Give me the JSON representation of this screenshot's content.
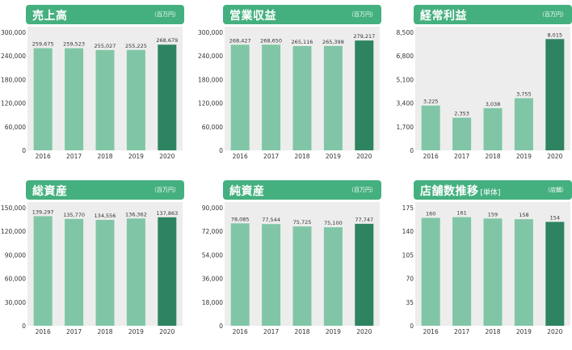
{
  "chart_data": [
    {
      "type": "bar",
      "title": "売上高",
      "title_suffix": "",
      "unit": "（百万円）",
      "categories": [
        "2016",
        "2017",
        "2018",
        "2019",
        "2020"
      ],
      "values": [
        259675,
        259523,
        255027,
        255225,
        268679
      ],
      "value_labels": [
        "259,675",
        "259,523",
        "255,027",
        "255,225",
        "268,679"
      ],
      "yticks": [
        0,
        60000,
        120000,
        180000,
        240000,
        300000
      ],
      "ytick_labels": [
        "0",
        "60,000",
        "120,000",
        "180,000",
        "240,000",
        "300,000"
      ],
      "ylim": [
        0,
        300000
      ],
      "grid": false
    },
    {
      "type": "bar",
      "title": "営業収益",
      "title_suffix": "",
      "unit": "（百万円）",
      "categories": [
        "2016",
        "2017",
        "2018",
        "2019",
        "2020"
      ],
      "values": [
        268427,
        268650,
        265116,
        265398,
        279217
      ],
      "value_labels": [
        "268,427",
        "268,650",
        "265,116",
        "265,398",
        "279,217"
      ],
      "yticks": [
        0,
        60000,
        120000,
        180000,
        240000,
        300000
      ],
      "ytick_labels": [
        "0",
        "60,000",
        "120,000",
        "180,000",
        "240,000",
        "300,000"
      ],
      "ylim": [
        0,
        300000
      ],
      "grid": false
    },
    {
      "type": "bar",
      "title": "経常利益",
      "title_suffix": "",
      "unit": "（百万円）",
      "categories": [
        "2016",
        "2017",
        "2018",
        "2019",
        "2020"
      ],
      "values": [
        3225,
        2353,
        3038,
        3755,
        8015
      ],
      "value_labels": [
        "3,225",
        "2,353",
        "3,038",
        "3,755",
        "8,015"
      ],
      "yticks": [
        0,
        1700,
        3400,
        5100,
        6800,
        8500
      ],
      "ytick_labels": [
        "0",
        "1,700",
        "3,400",
        "5,100",
        "6,800",
        "8,500"
      ],
      "ylim": [
        0,
        8500
      ],
      "grid": false
    },
    {
      "type": "bar",
      "title": "総資産",
      "title_suffix": "",
      "unit": "（百万円）",
      "categories": [
        "2016",
        "2017",
        "2018",
        "2019",
        "2020"
      ],
      "values": [
        139297,
        135770,
        134556,
        136362,
        137863
      ],
      "value_labels": [
        "139,297",
        "135,770",
        "134,556",
        "136,362",
        "137,863"
      ],
      "yticks": [
        0,
        30000,
        60000,
        90000,
        120000,
        150000
      ],
      "ytick_labels": [
        "0",
        "30,000",
        "60,000",
        "90,000",
        "120,000",
        "150,000"
      ],
      "ylim": [
        0,
        150000
      ],
      "grid": false
    },
    {
      "type": "bar",
      "title": "純資産",
      "title_suffix": "",
      "unit": "（百万円）",
      "categories": [
        "2016",
        "2017",
        "2018",
        "2019",
        "2020"
      ],
      "values": [
        78085,
        77544,
        75725,
        75100,
        77747
      ],
      "value_labels": [
        "78,085",
        "77,544",
        "75,725",
        "75,100",
        "77,747"
      ],
      "yticks": [
        0,
        18000,
        36000,
        54000,
        72000,
        90000
      ],
      "ytick_labels": [
        "0",
        "18,000",
        "36,000",
        "54,000",
        "72,000",
        "90,000"
      ],
      "ylim": [
        0,
        90000
      ],
      "grid": false
    },
    {
      "type": "bar",
      "title": "店舗数推移",
      "title_suffix": "[単体]",
      "unit": "（店舗）",
      "categories": [
        "2016",
        "2017",
        "2018",
        "2019",
        "2020"
      ],
      "values": [
        160,
        161,
        159,
        158,
        154
      ],
      "value_labels": [
        "160",
        "161",
        "159",
        "158",
        "154"
      ],
      "yticks": [
        0,
        35,
        70,
        105,
        140,
        175
      ],
      "ytick_labels": [
        "0",
        "35",
        "70",
        "105",
        "140",
        "175"
      ],
      "ylim": [
        0,
        175
      ],
      "grid": false
    }
  ],
  "colors": {
    "header": "#45b07f",
    "plot_bg": "#ededed",
    "bar": "#80c6a6",
    "bar_highlight": "#2e8461",
    "axis_text": "#333333"
  }
}
